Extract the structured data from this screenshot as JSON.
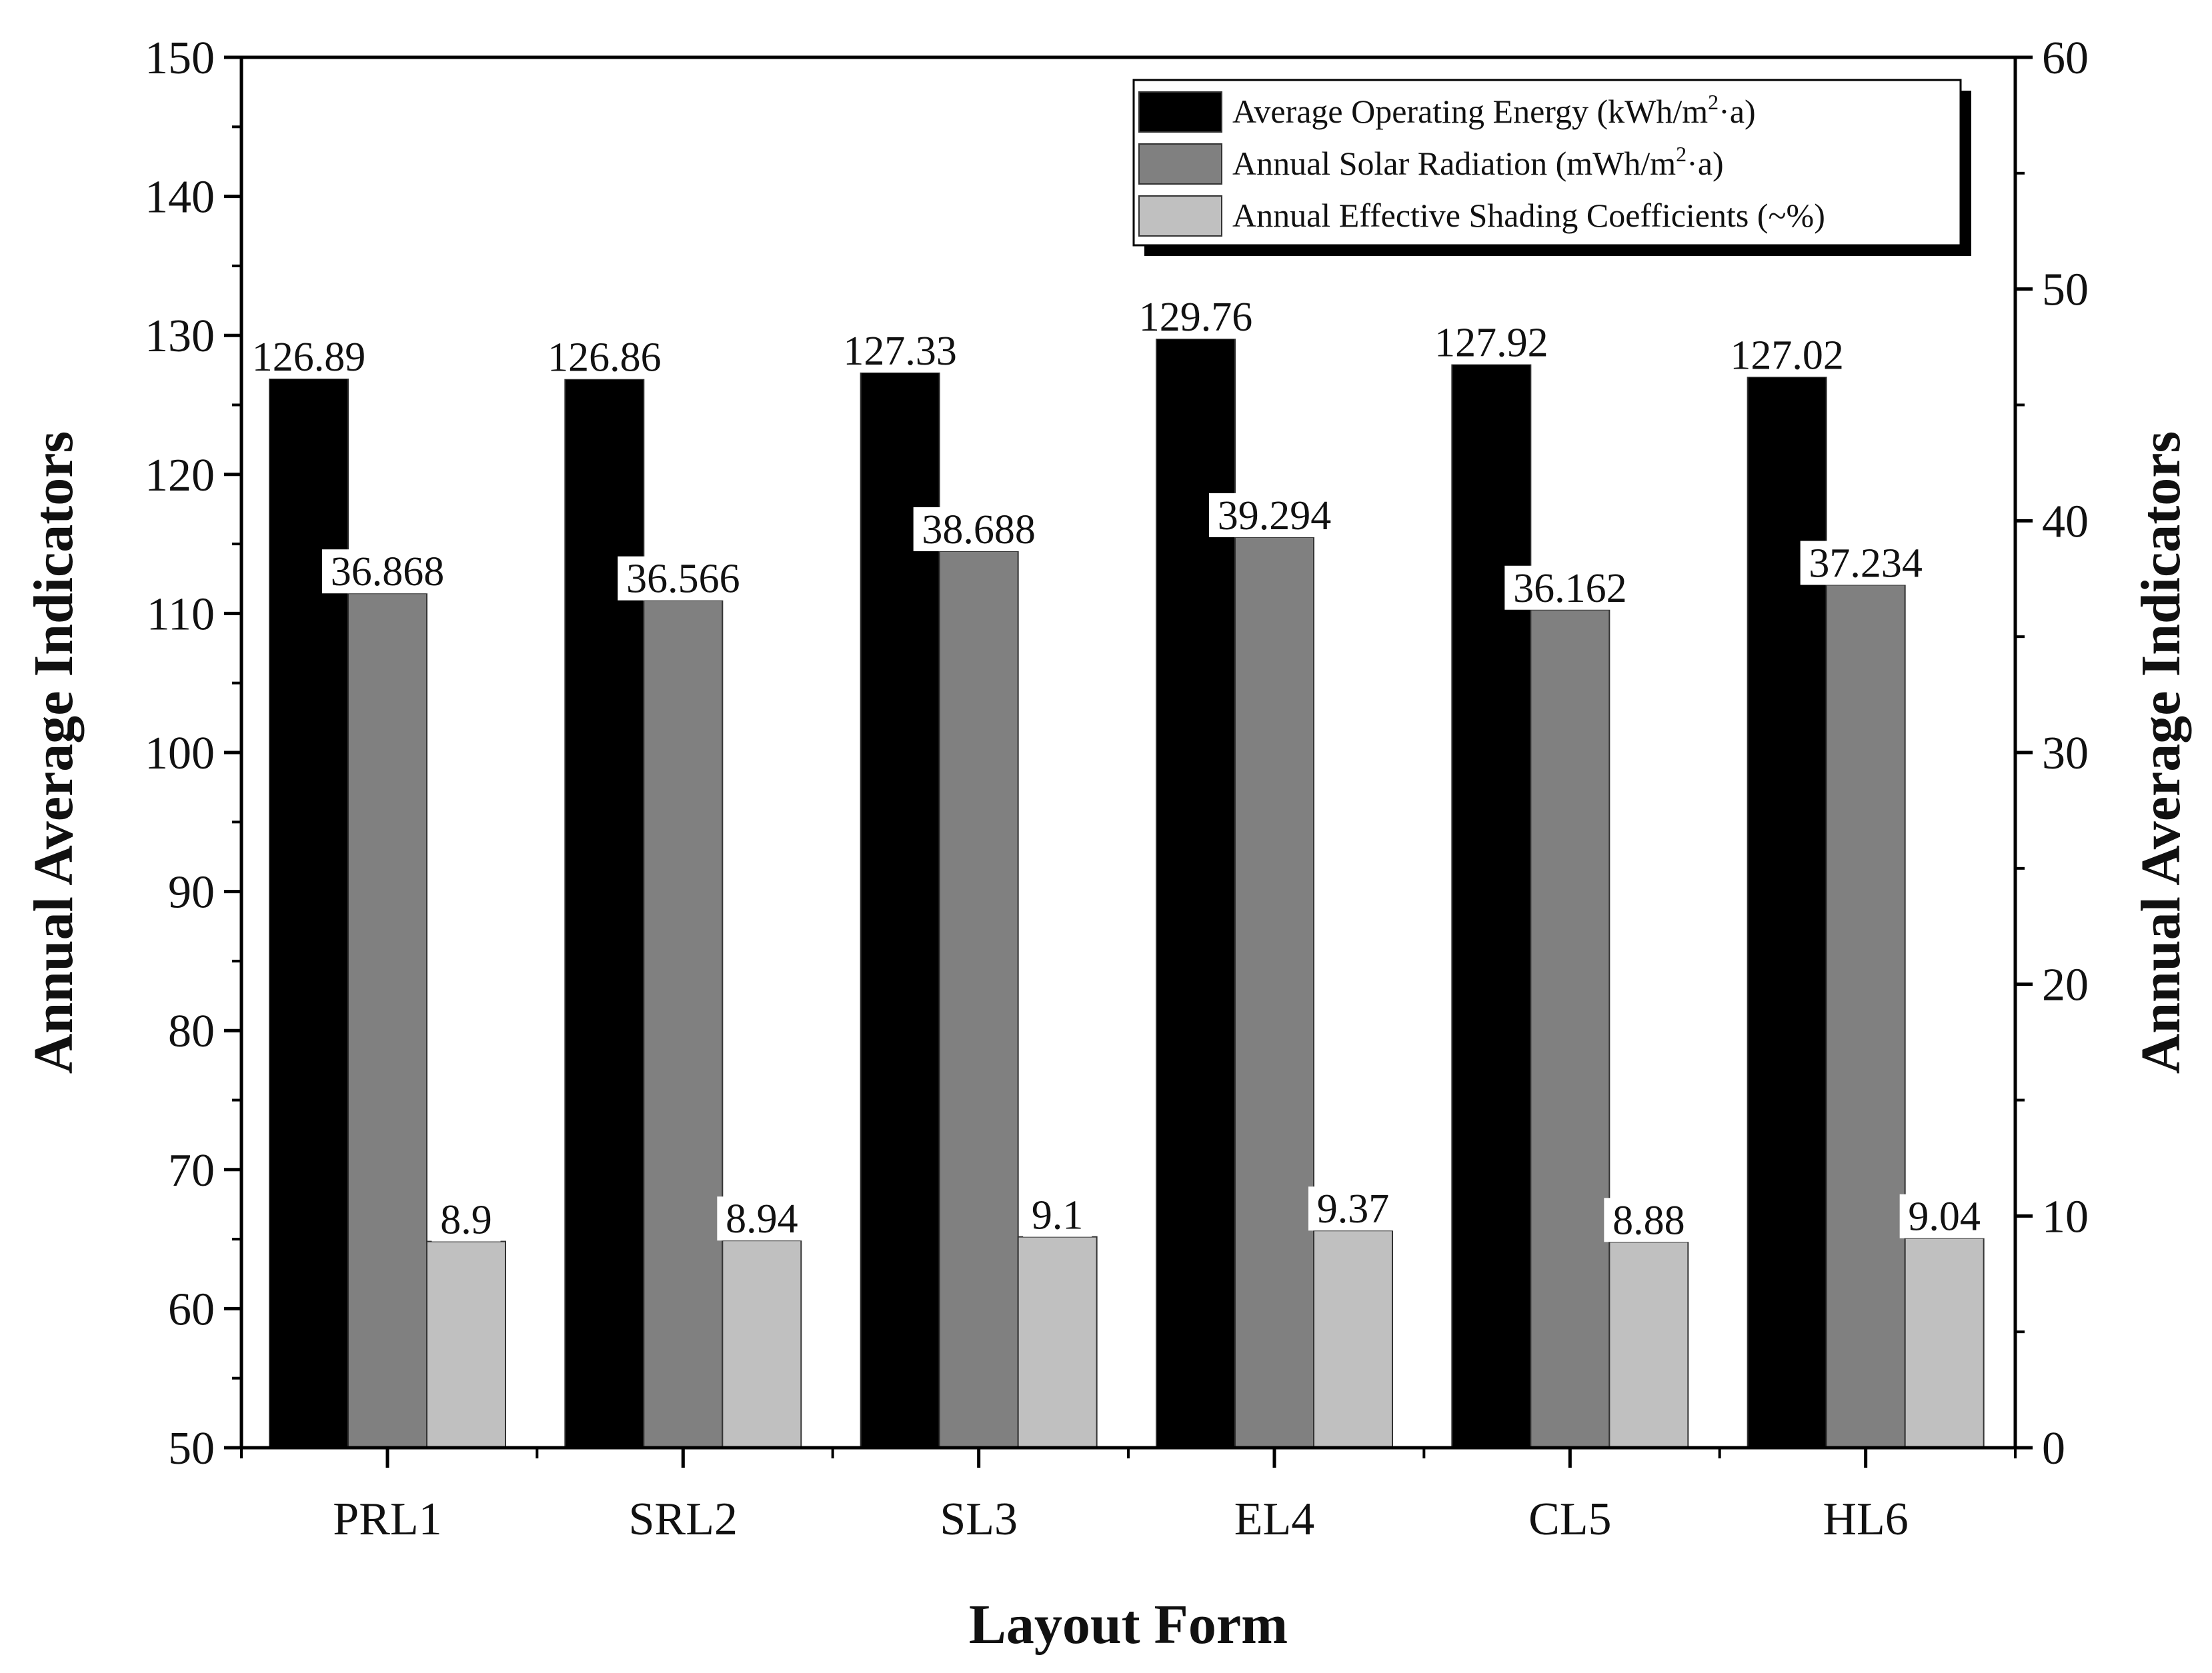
{
  "chart_data": {
    "type": "bar",
    "categories": [
      "PRL1",
      "SRL2",
      "SL3",
      "EL4",
      "CL5",
      "HL6"
    ],
    "series": [
      {
        "name": "Average Operating Energy",
        "unit_base": "(kWh/m",
        "unit_sup": "2",
        "unit_tail": "·a)",
        "axis": "left",
        "color": "#000000",
        "values": [
          126.89,
          126.86,
          127.33,
          129.76,
          127.92,
          127.02
        ],
        "labels": [
          "126.89",
          "126.86",
          "127.33",
          "129.76",
          "127.92",
          "127.02"
        ]
      },
      {
        "name": "Annual Solar Radiation",
        "unit_base": "(mWh/m",
        "unit_sup": "2",
        "unit_tail": "·a)",
        "axis": "right",
        "color": "#808080",
        "values": [
          36.868,
          36.566,
          38.688,
          39.294,
          36.162,
          37.234
        ],
        "labels": [
          "36.868",
          "36.566",
          "38.688",
          "39.294",
          "36.162",
          "37.234"
        ]
      },
      {
        "name": "Annual Effective Shading Coefficients",
        "unit_base": "(~%)",
        "unit_sup": "",
        "unit_tail": "",
        "axis": "right",
        "color": "#c0c0c0",
        "values": [
          8.9,
          8.94,
          9.1,
          9.37,
          8.88,
          9.04
        ],
        "labels": [
          "8.9",
          "8.94",
          "9.1",
          "9.37",
          "8.88",
          "9.04"
        ]
      }
    ],
    "xlabel": "Layout Form",
    "ylabel_left": "Annual Average Indicators",
    "ylabel_right": "Annual Average Indicators",
    "ylim_left": [
      50,
      150
    ],
    "yticks_left": [
      50,
      60,
      70,
      80,
      90,
      100,
      110,
      120,
      130,
      140,
      150
    ],
    "ylim_right": [
      0,
      60
    ],
    "yticks_right": [
      0,
      10,
      20,
      30,
      40,
      50,
      60
    ],
    "legend_position": "top-right",
    "grid": false
  }
}
